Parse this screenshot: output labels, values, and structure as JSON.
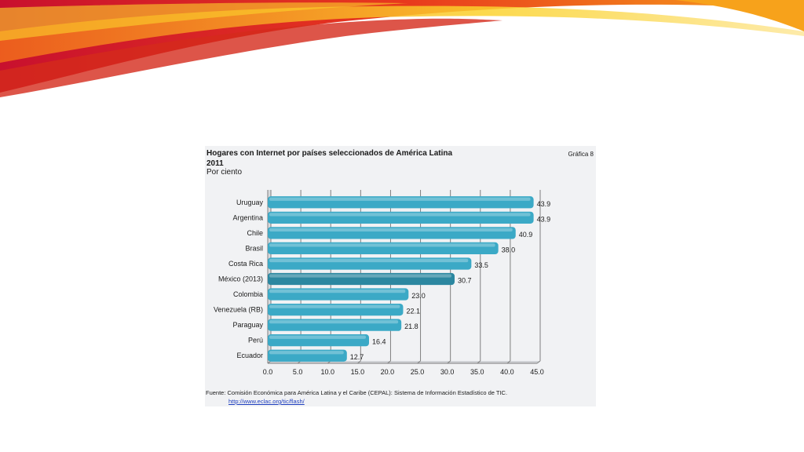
{
  "slide": {
    "ribbon_colors": [
      "#c8102e",
      "#e8381d",
      "#f26a1b",
      "#f7a21b",
      "#fbd22c"
    ]
  },
  "figure": {
    "title": "Hogares con Internet por países seleccionados de América Latina",
    "year": "2011",
    "unit": "Por ciento",
    "figure_number": "Gráfica 8",
    "source": "Fuente: Comisión Económica para América Latina y el Caribe (CEPAL): Sistema de Información Estadístico de TIC.",
    "source_link": "http://www.eclac.org/tic/flash/"
  },
  "chart_data": {
    "type": "bar",
    "orientation": "horizontal",
    "title": "Hogares con Internet por países seleccionados de América Latina",
    "subtitle": "2011",
    "xlabel": "Por ciento",
    "ylabel": "",
    "categories": [
      "Uruguay",
      "Argentina",
      "Chile",
      "Brasil",
      "Costa Rica",
      "México (2013)",
      "Colombia",
      "Venezuela (RB)",
      "Paraguay",
      "Perú",
      "Ecuador"
    ],
    "values": [
      43.9,
      43.9,
      40.9,
      38.0,
      33.5,
      30.7,
      23.0,
      22.1,
      21.8,
      16.4,
      12.7
    ],
    "value_labels": [
      "43.9",
      "43.9",
      "40.9",
      "38.0",
      "33.5",
      "30.7",
      "23.0",
      "22.1",
      "21.8",
      "16.4",
      "12.7"
    ],
    "highlight_category": "México (2013)",
    "xlim": [
      0,
      45
    ],
    "xticks": [
      "0.0",
      "5.0",
      "10.0",
      "15.0",
      "20.0",
      "25.0",
      "30.0",
      "35.0",
      "40.0",
      "45.0"
    ],
    "grid": true,
    "legend": "none",
    "colors": {
      "bar": "#3ba9c6",
      "bar_highlight": "#2c87a0",
      "grid": "#7f7f7f"
    }
  }
}
